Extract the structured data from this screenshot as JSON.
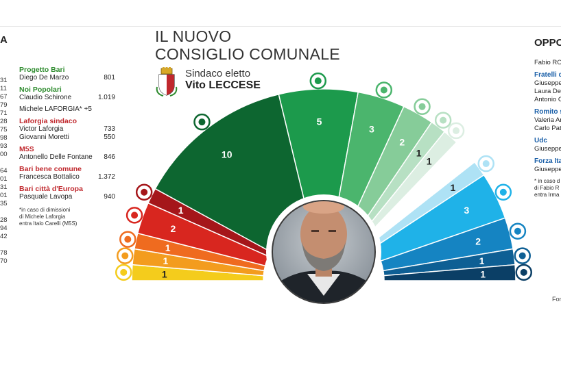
{
  "title": {
    "line1": "IL NUOVO",
    "line2": "CONSIGLIO COMUNALE"
  },
  "mayor": {
    "label": "Sindaco eletto",
    "name": "Vito LECCESE"
  },
  "left_edge": {
    "header": "A",
    "numbers": [
      "31",
      "11",
      "67",
      "79",
      "71",
      "28",
      "75",
      "98",
      "93",
      "00",
      "",
      "64",
      "01",
      "31",
      "01",
      "35",
      "",
      "28",
      "94",
      "42",
      "",
      "78",
      "70"
    ]
  },
  "majority_list": {
    "groups": [
      {
        "name": "Progetto Bari",
        "color": "#2e8b2e",
        "members": [
          {
            "name": "Diego De Marzo",
            "votes": "801"
          }
        ]
      },
      {
        "name": "Noi Popolari",
        "color": "#2e8b2e",
        "members": [
          {
            "name": "Claudio Schirone",
            "votes": "1.019"
          }
        ]
      },
      {
        "name": "",
        "color": "#222222",
        "members": [
          {
            "name": "Michele LAFORGIA* +5",
            "votes": ""
          }
        ]
      },
      {
        "name": "Laforgia sindaco",
        "color": "#c0282d",
        "members": [
          {
            "name": "Victor Laforgia",
            "votes": "733"
          },
          {
            "name": "Giovanni Moretti",
            "votes": "550"
          }
        ]
      },
      {
        "name": "M5S",
        "color": "#c0282d",
        "members": [
          {
            "name": "Antonello Delle Fontane",
            "votes": "846"
          }
        ]
      },
      {
        "name": "Bari bene comune",
        "color": "#c0282d",
        "members": [
          {
            "name": "Francesca Bottalico",
            "votes": "1.372"
          }
        ]
      },
      {
        "name": "Bari città d'Europa",
        "color": "#c0282d",
        "members": [
          {
            "name": "Pasquale Lavopa",
            "votes": "940"
          }
        ]
      }
    ],
    "note": [
      "*in caso di dimissioni",
      "di Michele Laforgia",
      "entra Italo Carelli (M5S)"
    ]
  },
  "opposition_list": {
    "header": "OPPO",
    "groups": [
      {
        "name": "",
        "members": [
          "Fabio ROM"
        ]
      },
      {
        "name": "Fratelli d",
        "members": [
          "Giuseppe",
          "Laura De",
          "Antonio C"
        ]
      },
      {
        "name": "Romito s",
        "members": [
          "Valeria Ar",
          "Carlo Patr"
        ]
      },
      {
        "name": "Udc",
        "members": [
          "Giuseppe"
        ]
      },
      {
        "name": "Forza Ita",
        "members": [
          "Giuseppe"
        ]
      }
    ],
    "note": [
      "* in caso d",
      "di Fabio R",
      "entra Irma"
    ]
  },
  "source_label": "Fon",
  "chart_data": {
    "type": "pie",
    "subtype": "semicircle-parliament",
    "total_seats": 36,
    "slices": [
      {
        "seats": 1,
        "label": "1",
        "color": "#f4cc1c",
        "side": "left",
        "logo": "lista-civica"
      },
      {
        "seats": 1,
        "label": "1",
        "color": "#f39c1e",
        "side": "left",
        "logo": "lista-civica"
      },
      {
        "seats": 1,
        "label": "1",
        "color": "#ef6b1f",
        "side": "left",
        "logo": "m5s"
      },
      {
        "seats": 2,
        "label": "2",
        "color": "#d8261f",
        "side": "left",
        "logo": "laforgia-sindaco"
      },
      {
        "seats": 1,
        "label": "1",
        "color": "#a5161a",
        "side": "left",
        "logo": "michele-laforgia"
      },
      {
        "seats": 10,
        "label": "10",
        "color": "#0d6630",
        "side": "left",
        "logo": "pd"
      },
      {
        "seats": 5,
        "label": "5",
        "color": "#1c9a4c",
        "side": "left",
        "logo": "decaro-per-bari"
      },
      {
        "seats": 3,
        "label": "3",
        "color": "#4bb56d",
        "side": "left",
        "logo": "con-leccese"
      },
      {
        "seats": 2,
        "label": "2",
        "color": "#86cc99",
        "side": "left",
        "logo": "leccese-sindaco"
      },
      {
        "seats": 1,
        "label": "1",
        "color": "#b7e0c3",
        "side": "left",
        "logo": "sinistra"
      },
      {
        "seats": 1,
        "label": "1",
        "color": "#dceee2",
        "side": "left",
        "logo": "progetto-bari"
      },
      {
        "seats": 1,
        "label": "1",
        "color": "#aee2f5",
        "side": "right",
        "logo": "fabio-romito"
      },
      {
        "seats": 3,
        "label": "3",
        "color": "#1fb2e8",
        "side": "right",
        "logo": "fratelli-d-italia"
      },
      {
        "seats": 2,
        "label": "2",
        "color": "#1584c2",
        "side": "right",
        "logo": "romito-sindaco"
      },
      {
        "seats": 1,
        "label": "1",
        "color": "#0e5f94",
        "side": "right",
        "logo": "udc"
      },
      {
        "seats": 1,
        "label": "1",
        "color": "#0b3f66",
        "side": "right",
        "logo": "forza-italia"
      }
    ]
  }
}
